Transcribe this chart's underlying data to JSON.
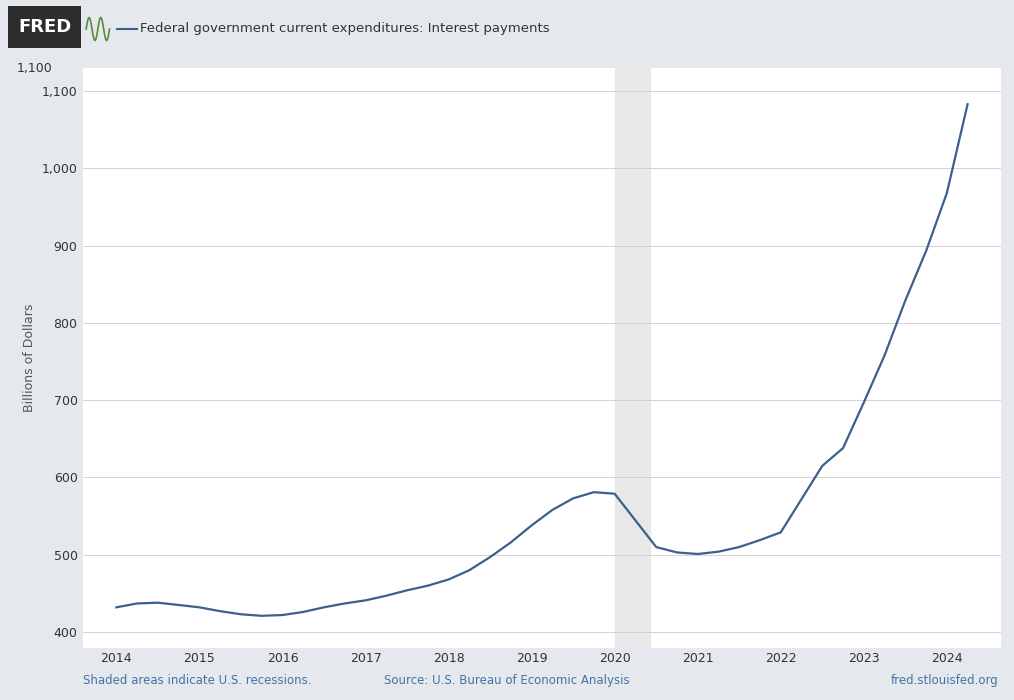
{
  "title": "Federal government current expenditures: Interest payments",
  "ylabel": "Billions of Dollars",
  "background_color": "#e5e9ee",
  "plot_bg_color": "#ffffff",
  "recession_color": "#e8e8e8",
  "line_color": "#3c5f8c",
  "line_width": 1.6,
  "ylim": [
    380,
    1130
  ],
  "yticks": [
    400,
    500,
    600,
    700,
    800,
    900,
    1000,
    1100
  ],
  "xlim_left": 2013.6,
  "xlim_right": 2024.65,
  "xtick_positions": [
    2014,
    2015,
    2016,
    2017,
    2018,
    2019,
    2020,
    2021,
    2022,
    2023,
    2024
  ],
  "footer_left": "Shaded areas indicate U.S. recessions.",
  "footer_center": "Source: U.S. Bureau of Economic Analysis",
  "footer_right": "fred.stlouisfed.org",
  "recession_bands": [
    [
      2020.0,
      2020.42
    ]
  ],
  "data": {
    "dates": [
      2014.0,
      2014.25,
      2014.5,
      2014.75,
      2015.0,
      2015.25,
      2015.5,
      2015.75,
      2016.0,
      2016.25,
      2016.5,
      2016.75,
      2017.0,
      2017.25,
      2017.5,
      2017.75,
      2018.0,
      2018.25,
      2018.5,
      2018.75,
      2019.0,
      2019.25,
      2019.5,
      2019.75,
      2020.0,
      2020.5,
      2020.75,
      2021.0,
      2021.25,
      2021.5,
      2021.75,
      2022.0,
      2022.25,
      2022.5,
      2022.75,
      2023.0,
      2023.25,
      2023.5,
      2023.75,
      2024.0,
      2024.25
    ],
    "values": [
      432,
      437,
      438,
      435,
      432,
      427,
      423,
      421,
      422,
      426,
      432,
      437,
      441,
      447,
      454,
      460,
      468,
      480,
      497,
      516,
      538,
      558,
      573,
      581,
      579,
      510,
      503,
      501,
      504,
      510,
      519,
      529,
      572,
      615,
      638,
      697,
      758,
      829,
      893,
      968,
      1083
    ]
  }
}
